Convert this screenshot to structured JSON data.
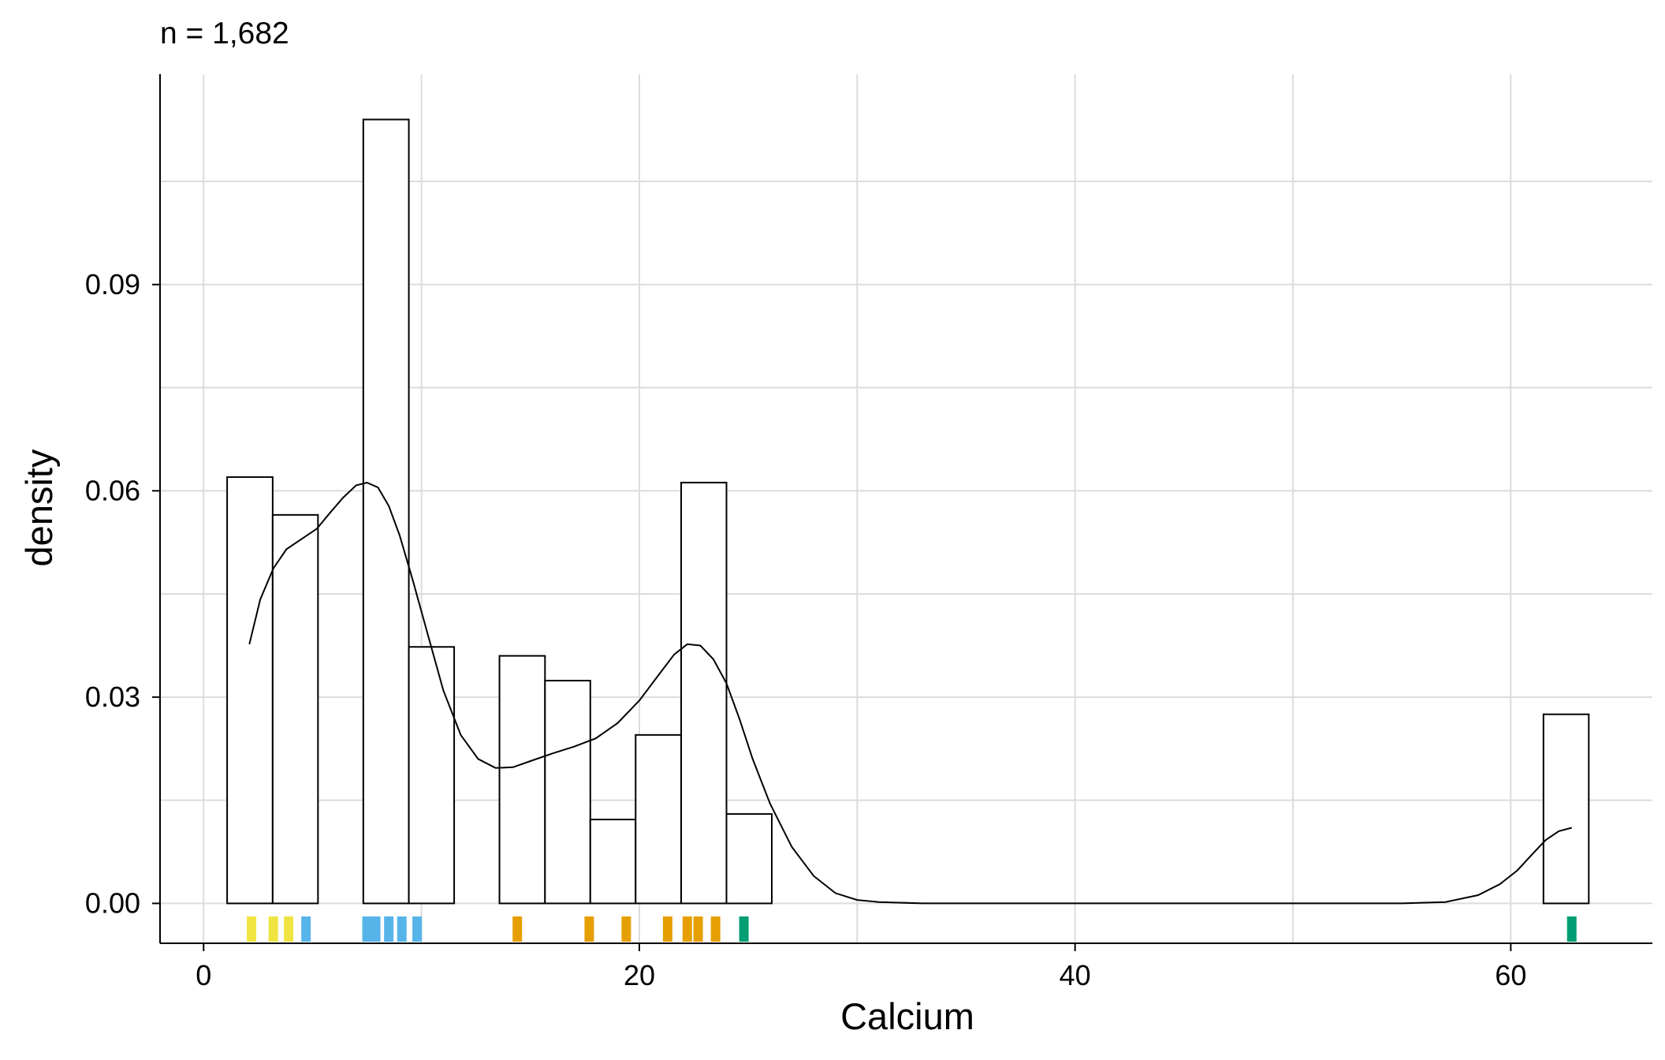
{
  "subtitle": "n = 1,682",
  "colors": {
    "bar_fill": "#ffffff",
    "bar_stroke": "#000000",
    "density_line": "#000000",
    "grid": "#dcdcdc",
    "rug_groups": [
      "#f0e442",
      "#56b4e9",
      "#e69f00",
      "#009e73"
    ]
  },
  "chart_data": {
    "type": "histogram",
    "xlabel": "Calcium",
    "ylabel": "density",
    "xlim": [
      -2,
      66.5
    ],
    "ylim": [
      -0.0058,
      0.1206
    ],
    "x_ticks": [
      0,
      20,
      40,
      60
    ],
    "x_tick_labels": [
      "0",
      "20",
      "40",
      "60"
    ],
    "x_minor_grid": [
      10,
      30,
      50
    ],
    "y_ticks": [
      0,
      0.03,
      0.06,
      0.09
    ],
    "y_tick_labels": [
      "0.00",
      "0.03",
      "0.06",
      "0.09"
    ],
    "y_minor_grid": [
      0.015,
      0.045,
      0.075,
      0.105
    ],
    "grid": true,
    "bins": [
      {
        "x0": 1.08,
        "x1": 3.17,
        "density": 0.062
      },
      {
        "x0": 3.17,
        "x1": 5.25,
        "density": 0.0565
      },
      {
        "x0": 7.33,
        "x1": 9.42,
        "density": 0.114
      },
      {
        "x0": 9.42,
        "x1": 11.5,
        "density": 0.0373
      },
      {
        "x0": 13.58,
        "x1": 15.67,
        "density": 0.036
      },
      {
        "x0": 15.67,
        "x1": 17.75,
        "density": 0.0324
      },
      {
        "x0": 17.75,
        "x1": 19.83,
        "density": 0.0122
      },
      {
        "x0": 19.83,
        "x1": 21.92,
        "density": 0.0245
      },
      {
        "x0": 21.92,
        "x1": 24.0,
        "density": 0.0612
      },
      {
        "x0": 24.0,
        "x1": 26.08,
        "density": 0.013
      },
      {
        "x0": 61.5,
        "x1": 63.58,
        "density": 0.0275
      }
    ],
    "density_curve": {
      "x": [
        2.1,
        2.6,
        3.2,
        3.8,
        4.5,
        5.2,
        5.8,
        6.4,
        7.0,
        7.5,
        8.0,
        8.5,
        9.0,
        9.6,
        10.3,
        11.0,
        11.8,
        12.6,
        13.4,
        14.2,
        15.0,
        16.0,
        17.0,
        18.0,
        19.0,
        20.0,
        21.0,
        21.6,
        22.2,
        22.8,
        23.4,
        24.0,
        24.6,
        25.2,
        26.0,
        27.0,
        28.0,
        29.0,
        30.0,
        31.0,
        33.0,
        36.0,
        45.0,
        55.0,
        57.0,
        58.5,
        59.5,
        60.3,
        61.0,
        61.6,
        62.2,
        62.8
      ],
      "y": [
        0.0377,
        0.0442,
        0.0487,
        0.0515,
        0.053,
        0.0545,
        0.0568,
        0.059,
        0.0608,
        0.0612,
        0.0605,
        0.0578,
        0.0535,
        0.047,
        0.039,
        0.031,
        0.0245,
        0.021,
        0.0197,
        0.0198,
        0.0207,
        0.0218,
        0.0228,
        0.024,
        0.0262,
        0.0295,
        0.0337,
        0.0362,
        0.0377,
        0.0375,
        0.0355,
        0.032,
        0.0268,
        0.021,
        0.0145,
        0.0082,
        0.004,
        0.0015,
        0.0005,
        0.0002,
        0.0,
        0.0,
        0.0,
        0.0,
        0.0002,
        0.0012,
        0.0028,
        0.0048,
        0.0072,
        0.0092,
        0.0105,
        0.011
      ]
    },
    "rug": {
      "x": [
        2.2,
        3.2,
        3.9,
        4.7,
        7.5,
        7.9,
        8.5,
        9.1,
        9.8,
        14.4,
        17.7,
        19.4,
        21.3,
        22.2,
        22.7,
        23.5,
        24.8,
        62.8
      ],
      "group": [
        0,
        0,
        0,
        1,
        1,
        1,
        1,
        1,
        1,
        2,
        2,
        2,
        2,
        2,
        2,
        2,
        3,
        3
      ]
    }
  }
}
